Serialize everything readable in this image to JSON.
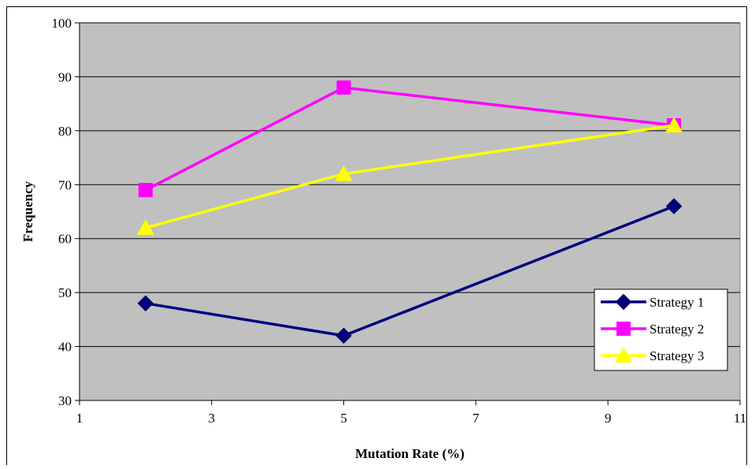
{
  "chart_data": {
    "type": "line",
    "title": "",
    "xlabel": "Mutation Rate (%)",
    "ylabel": "Frequency",
    "xlim": [
      1,
      11
    ],
    "ylim": [
      30,
      100
    ],
    "xticks": [
      1,
      3,
      5,
      7,
      9,
      11
    ],
    "yticks": [
      30,
      40,
      50,
      60,
      70,
      80,
      90,
      100
    ],
    "grid": "horizontal",
    "legend_position": "bottom-right",
    "x": [
      2,
      5,
      10
    ],
    "series": [
      {
        "name": "Strategy 1",
        "values": [
          48,
          42,
          66
        ],
        "color": "#000080",
        "marker": "diamond"
      },
      {
        "name": "Strategy 2",
        "values": [
          69,
          88,
          81
        ],
        "color": "#FF00FF",
        "marker": "square"
      },
      {
        "name": "Strategy 3",
        "values": [
          62,
          72,
          81
        ],
        "color": "#FFFF00",
        "marker": "triangle"
      }
    ],
    "plot_background": "#C0C0C0"
  }
}
